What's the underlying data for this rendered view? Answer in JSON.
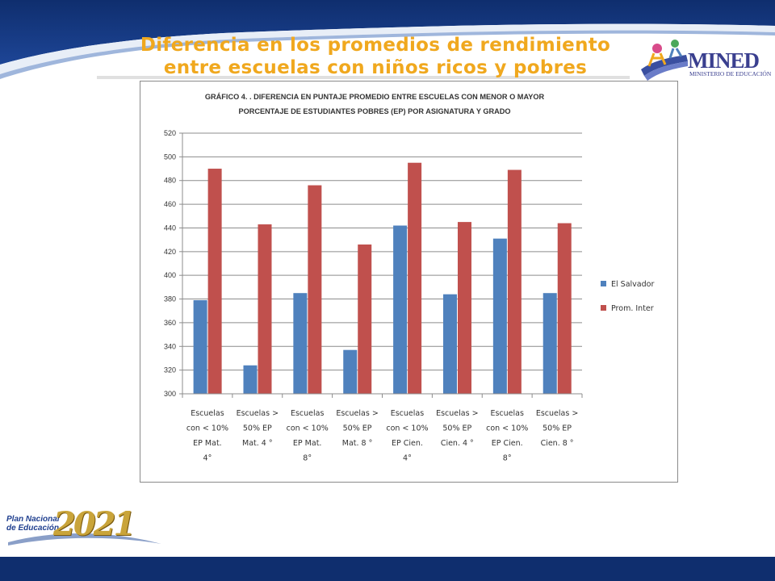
{
  "slide": {
    "title_line1": "Diferencia en los promedios de rendimiento",
    "title_line2": "entre escuelas con niños ricos y pobres"
  },
  "logo_mined": {
    "name": "MINED",
    "subtitle": "MINISTERIO DE EDUCACIÓN"
  },
  "plan_logo": {
    "line1": "Plan Nacional",
    "line2": "de Educación",
    "year": "2021"
  },
  "colors": {
    "header_blue": "#1a3f88",
    "title_orange": "#f0a81e",
    "series_el_salvador": "#4f81bd",
    "series_prom_inter": "#c0504d"
  },
  "chart_data": {
    "type": "bar",
    "title_line1": "GRÁFICO 4. . DIFERENCIA EN PUNTAJE PROMEDIO ENTRE ESCUELAS CON MENOR O MAYOR",
    "title_line2": "PORCENTAJE DE ESTUDIANTES POBRES (EP) POR ASIGNATURA Y GRADO",
    "categories": [
      [
        "Escuelas",
        "con < 10%",
        "EP Mat.",
        "4°"
      ],
      [
        "Escuelas >",
        "50% EP",
        "Mat. 4 °"
      ],
      [
        "Escuelas",
        "con < 10%",
        "EP Mat.",
        "8°"
      ],
      [
        "Escuelas >",
        "50% EP",
        "Mat. 8 °"
      ],
      [
        "Escuelas",
        "con < 10%",
        "EP Cien.",
        "4°"
      ],
      [
        "Escuelas >",
        "50% EP",
        "Cien. 4 °"
      ],
      [
        "Escuelas",
        "con < 10%",
        "EP Cien.",
        "8°"
      ],
      [
        "Escuelas >",
        "50% EP",
        "Cien. 8 °"
      ]
    ],
    "series": [
      {
        "name": "El Salvador",
        "values": [
          379,
          324,
          385,
          337,
          442,
          384,
          431,
          385
        ]
      },
      {
        "name": "Prom. Inter",
        "values": [
          490,
          443,
          476,
          426,
          495,
          445,
          489,
          444
        ]
      }
    ],
    "ylim": [
      300,
      520
    ],
    "yticks": [
      300,
      320,
      340,
      360,
      380,
      400,
      420,
      440,
      460,
      480,
      500,
      520
    ],
    "grid": true,
    "legend": "right"
  }
}
